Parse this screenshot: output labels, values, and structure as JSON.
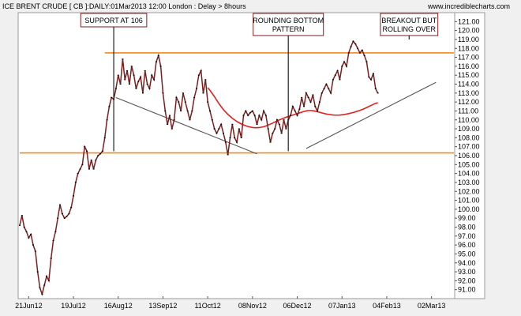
{
  "header": {
    "title": "ICE BRENT CRUDE [ CB ]:DAILY:01Mar2013 12:00 London : Delay > 8hours",
    "site": "www.incrediblecharts.com"
  },
  "colors": {
    "background": "#f0f0f0",
    "plot_background": "#ffffff",
    "price": "#7a1f1f",
    "price_marker": "#000000",
    "moving_average": "#e02020",
    "support_resistance": "#f08a1c",
    "trendline": "#555555",
    "annotation_border": "#7a1f1f"
  },
  "chart_data": {
    "type": "line",
    "title": "ICE BRENT CRUDE [ CB ]:DAILY:01Mar2013 12:00 London : Delay > 8hours",
    "xlabel": "",
    "ylabel": "",
    "y_axis_side": "right",
    "ylim": [
      90,
      122
    ],
    "y_ticks": [
      91,
      92,
      93,
      94,
      95,
      96,
      97,
      98,
      99,
      100,
      101,
      102,
      103,
      104,
      105,
      106,
      107,
      108,
      109,
      110,
      111,
      112,
      113,
      114,
      115,
      116,
      117,
      118,
      119,
      120,
      121
    ],
    "y_tick_labels": [
      "91.00",
      "92.00",
      "93.00",
      "94.00",
      "95.00",
      "96.00",
      "97.00",
      "98.00",
      "99.00",
      "100.00",
      "101.00",
      "102.00",
      "103.00",
      "104.00",
      "105.00",
      "106.00",
      "107.00",
      "108.00",
      "109.00",
      "110.00",
      "111.00",
      "112.00",
      "113.00",
      "114.00",
      "115.00",
      "116.00",
      "117.00",
      "118.00",
      "119.00",
      "120.00",
      "121.00"
    ],
    "x_tick_labels": [
      "21Jun12",
      "19Jul12",
      "16Aug12",
      "13Sep12",
      "11Oct12",
      "08Nov12",
      "06Dec12",
      "07Jan13",
      "04Feb13",
      "02Mar13"
    ],
    "x_tick_positions": [
      4,
      24,
      44,
      64,
      84,
      104,
      124,
      144,
      164,
      184
    ],
    "x_domain": [
      0,
      194
    ],
    "grid": false,
    "series": [
      {
        "kind": "price",
        "values": [
          98.2,
          99.3,
          98.0,
          97.5,
          96.8,
          97.2,
          96.0,
          95.3,
          93.0,
          91.2,
          90.5,
          91.5,
          92.5,
          92.0,
          94.5,
          96.5,
          97.5,
          99.0,
          100.5,
          99.5,
          99.0,
          99.2,
          99.5,
          100.2,
          101.5,
          103.0,
          104.0,
          104.5,
          105.0,
          107.0,
          106.5,
          104.5,
          105.5,
          104.5,
          105.5,
          106.0,
          106.2,
          106.5,
          108.0,
          110.0,
          111.5,
          112.5,
          112.3,
          113.5,
          115.0,
          114.0,
          116.8,
          114.5,
          115.5,
          114.0,
          116.0,
          115.0,
          113.5,
          114.3,
          114.8,
          113.0,
          115.5,
          114.0,
          113.5,
          115.0,
          114.5,
          116.5,
          117.2,
          116.0,
          113.0,
          111.0,
          109.5,
          110.5,
          109.0,
          110.0,
          112.5,
          112.0,
          111.0,
          113.0,
          112.0,
          111.0,
          110.0,
          111.0,
          112.5,
          113.5,
          115.0,
          115.5,
          113.0,
          114.5,
          112.0,
          111.0,
          110.0,
          109.0,
          108.5,
          109.0,
          109.5,
          108.5,
          107.5,
          106.1,
          108.0,
          109.5,
          108.0,
          107.5,
          109.0,
          108.0,
          110.5,
          111.0,
          110.5,
          110.8,
          111.0,
          110.5,
          109.5,
          110.5,
          110.0,
          111.0,
          110.5,
          109.0,
          107.5,
          108.5,
          109.0,
          110.0,
          109.5,
          108.5,
          110.0,
          109.0,
          110.0,
          110.5,
          111.5,
          111.0,
          110.5,
          111.2,
          112.5,
          111.5,
          113.0,
          112.5,
          112.0,
          112.8,
          111.5,
          111.0,
          112.0,
          113.0,
          113.5,
          114.0,
          113.5,
          113.0,
          114.5,
          115.0,
          115.5,
          114.5,
          116.0,
          116.5,
          116.0,
          117.5,
          118.2,
          118.8,
          118.5,
          118.0,
          117.5,
          117.8,
          117.2,
          116.5,
          114.8,
          114.5,
          115.2,
          113.5,
          113.0
        ]
      },
      {
        "kind": "moving_average",
        "values": [
          113.6,
          113.3,
          112.95,
          112.6,
          112.2,
          111.82,
          111.48,
          111.15,
          110.88,
          110.62,
          110.4,
          110.18,
          110.0,
          109.82,
          109.68,
          109.55,
          109.44,
          109.34,
          109.26,
          109.2,
          109.15,
          109.12,
          109.12,
          109.14,
          109.18,
          109.24,
          109.32,
          109.42,
          109.52,
          109.64,
          109.76,
          109.88,
          110.0,
          110.1,
          110.2,
          110.3,
          110.38,
          110.46,
          110.54,
          110.62,
          110.7,
          110.78,
          110.86,
          110.94,
          111.0,
          111.05,
          111.05,
          111.02,
          110.98,
          110.92,
          110.85,
          110.78,
          110.72,
          110.66,
          110.62,
          110.58,
          110.55,
          110.53,
          110.53,
          110.54,
          110.57,
          110.6,
          110.65,
          110.7,
          110.76,
          110.82,
          110.9,
          110.98,
          111.06,
          111.16,
          111.26,
          111.38,
          111.5,
          111.62,
          111.74,
          111.84,
          111.92
        ]
      }
    ],
    "reference_lines": [
      {
        "name": "resistance",
        "y": 117.5,
        "x_start": 38,
        "x_end": 194
      },
      {
        "name": "support",
        "y": 106.3,
        "x_start": 0,
        "x_end": 194
      }
    ],
    "trendlines": [
      {
        "x1": 43,
        "y1": 112.5,
        "x2": 106,
        "y2": 106.2
      },
      {
        "x1": 128,
        "y1": 106.8,
        "x2": 186,
        "y2": 114.2
      }
    ],
    "annotations": [
      {
        "lines": [
          "SUPPORT AT 106"
        ],
        "x": 42,
        "y_target": 106.5
      },
      {
        "lines": [
          "ROUNDING BOTTOM",
          "PATTERN"
        ],
        "x": 120,
        "y_target": 106.5
      },
      {
        "lines": [
          "BREAKOUT BUT",
          "ROLLING OVER"
        ],
        "x": 174,
        "y_target": 119.0
      }
    ]
  }
}
